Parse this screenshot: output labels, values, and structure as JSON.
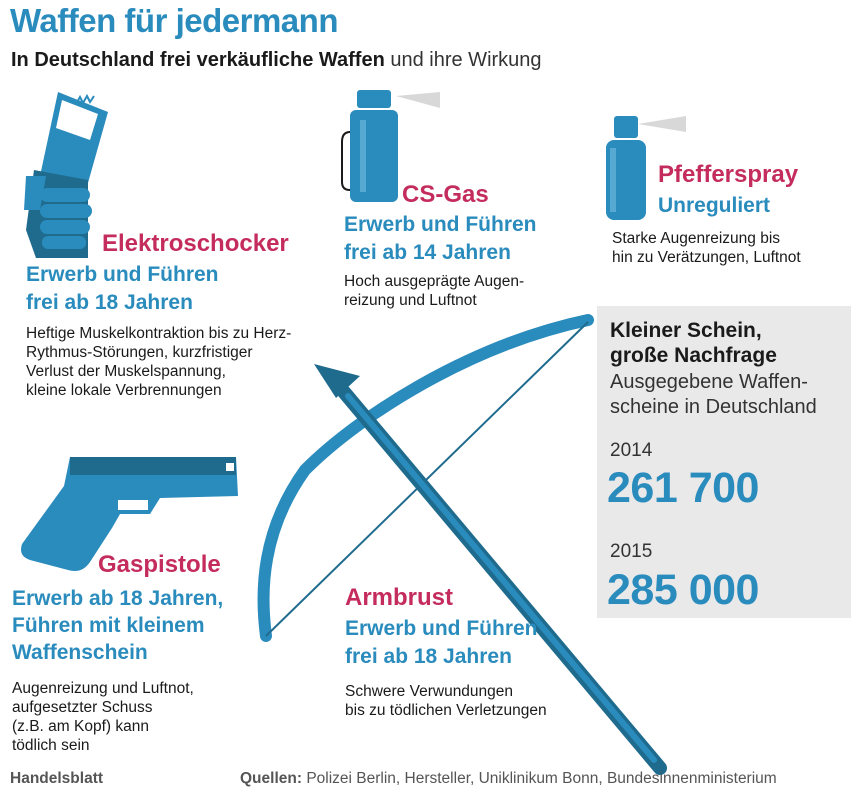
{
  "header": {
    "title": "Waffen für jedermann",
    "subtitle_bold": "In Deutschland frei verkäufliche Waffen",
    "subtitle_rest": " und ihre Wirkung"
  },
  "colors": {
    "blue": "#2a8bbd",
    "dark_blue": "#1f6b8e",
    "red": "#c42c5d",
    "box_gray": "#e9e9ea"
  },
  "weapons": {
    "elektroschocker": {
      "icon": "stun-gun-icon",
      "name": "Elektroschocker",
      "rule_line1": "Erwerb und Führen",
      "rule_line2": "frei ab 18 Jahren",
      "desc": [
        "Heftige Muskelkontraktion bis zu Herz-",
        "Rythmus-Störungen, kurzfristiger",
        "Verlust der Muskelspannung,",
        "kleine lokale Verbrennungen"
      ]
    },
    "csgas": {
      "icon": "cs-gas-spray-icon",
      "name": "CS-Gas",
      "rule_line1": "Erwerb und Führen",
      "rule_line2": "frei ab 14 Jahren",
      "desc": [
        "Hoch ausgeprägte Augen-",
        "reizung und Luftnot"
      ]
    },
    "pfefferspray": {
      "icon": "pepper-spray-icon",
      "name": "Pfefferspray",
      "rule_line1": "Unreguliert",
      "desc": [
        "Starke Augenreizung bis",
        "hin zu Verätzungen, Luftnot"
      ]
    },
    "gaspistole": {
      "icon": "gas-pistol-icon",
      "name": "Gaspistole",
      "rule_line1": "Erwerb ab 18 Jahren,",
      "rule_line2": "Führen mit kleinem",
      "rule_line3": "Waffenschein",
      "desc": [
        "Augenreizung und Luftnot,",
        "aufgesetzter Schuss",
        "(z.B. am Kopf) kann",
        "tödlich sein"
      ]
    },
    "armbrust": {
      "icon": "crossbow-icon",
      "name": "Armbrust",
      "rule_line1": "Erwerb und Führen",
      "rule_line2": "frei ab 18 Jahren",
      "desc": [
        "Schwere Verwundungen",
        "bis zu tödlichen Verletzungen"
      ]
    }
  },
  "stats": {
    "title_line1": "Kleiner Schein,",
    "title_line2": "große Nachfrage",
    "sub_line1": "Ausgegebene Waffen-",
    "sub_line2": "scheine in Deutschland",
    "year1": "2014",
    "value1": "261 700",
    "year2": "2015",
    "value2": "285 000",
    "trend_icon": "arrow-up-right-icon"
  },
  "footer": {
    "publisher": "Handelsblatt",
    "sources_label": "Quellen:",
    "sources_text": " Polizei Berlin, Hersteller, Uniklinikum Bonn, Bundesinnenministerium"
  }
}
